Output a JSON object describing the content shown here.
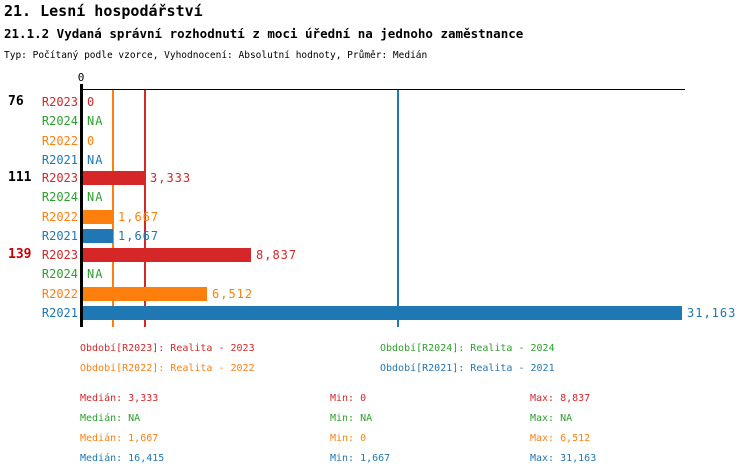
{
  "header": {
    "title": "21. Lesní hospodářství",
    "subtitle": "21.1.2 Vydaná správní rozhodnutí z moci úřední na jednoho zaměstnance",
    "meta": "Typ: Počítaný podle vzorce, Vyhodnocení: Absolutní hodnoty, Průměr: Medián"
  },
  "colors": {
    "R2023": "#d62728",
    "R2024": "#2ca02c",
    "R2022": "#ff7f0e",
    "R2021": "#1f77b4",
    "highlight": "#cc0000",
    "axis": "#000000"
  },
  "chart_data": {
    "type": "bar",
    "orientation": "horizontal",
    "axis_zero_label": "0",
    "xlim": [
      0,
      31163
    ],
    "grid": "median-lines-only",
    "series_order": [
      "R2023",
      "R2024",
      "R2022",
      "R2021"
    ],
    "median_lines": [
      {
        "series": "R2022",
        "value": 1667
      },
      {
        "series": "R2023",
        "value": 3333
      },
      {
        "series": "R2021",
        "value": 16415
      }
    ],
    "groups": [
      {
        "label": "76",
        "highlighted": false,
        "rows": [
          {
            "series": "R2023",
            "value": 0,
            "display": "0"
          },
          {
            "series": "R2024",
            "value": null,
            "display": "NA"
          },
          {
            "series": "R2022",
            "value": 0,
            "display": "0"
          },
          {
            "series": "R2021",
            "value": null,
            "display": "NA"
          }
        ]
      },
      {
        "label": "111",
        "highlighted": false,
        "rows": [
          {
            "series": "R2023",
            "value": 3333,
            "display": "3,333"
          },
          {
            "series": "R2024",
            "value": null,
            "display": "NA"
          },
          {
            "series": "R2022",
            "value": 1667,
            "display": "1,667"
          },
          {
            "series": "R2021",
            "value": 1667,
            "display": "1,667"
          }
        ]
      },
      {
        "label": "139",
        "highlighted": true,
        "rows": [
          {
            "series": "R2023",
            "value": 8837,
            "display": "8,837"
          },
          {
            "series": "R2024",
            "value": null,
            "display": "NA"
          },
          {
            "series": "R2022",
            "value": 6512,
            "display": "6,512"
          },
          {
            "series": "R2021",
            "value": 31163,
            "display": "31,163"
          }
        ]
      }
    ],
    "summary": {
      "R2023": {
        "median": 3333,
        "min": 0,
        "max": 8837
      },
      "R2024": {
        "median": null,
        "min": null,
        "max": null
      },
      "R2022": {
        "median": 1667,
        "min": 0,
        "max": 6512
      },
      "R2021": {
        "median": 16415,
        "min": 1667,
        "max": 31163
      }
    }
  },
  "legend": {
    "items": [
      {
        "series": "R2023",
        "label": "Období[R2023]: Realita - 2023"
      },
      {
        "series": "R2024",
        "label": "Období[R2024]: Realita - 2024"
      },
      {
        "series": "R2022",
        "label": "Období[R2022]: Realita - 2022"
      },
      {
        "series": "R2021",
        "label": "Období[R2021]: Realita - 2021"
      }
    ]
  },
  "stats": {
    "rows": [
      {
        "series": "R2023",
        "median": "Medián: 3,333",
        "min": "Min: 0",
        "max": "Max: 8,837"
      },
      {
        "series": "R2024",
        "median": "Medián: NA",
        "min": "Min: NA",
        "max": "Max: NA"
      },
      {
        "series": "R2022",
        "median": "Medián: 1,667",
        "min": "Min: 0",
        "max": "Max: 6,512"
      },
      {
        "series": "R2021",
        "median": "Medián: 16,415",
        "min": "Min: 1,667",
        "max": "Max: 31,163"
      }
    ]
  }
}
